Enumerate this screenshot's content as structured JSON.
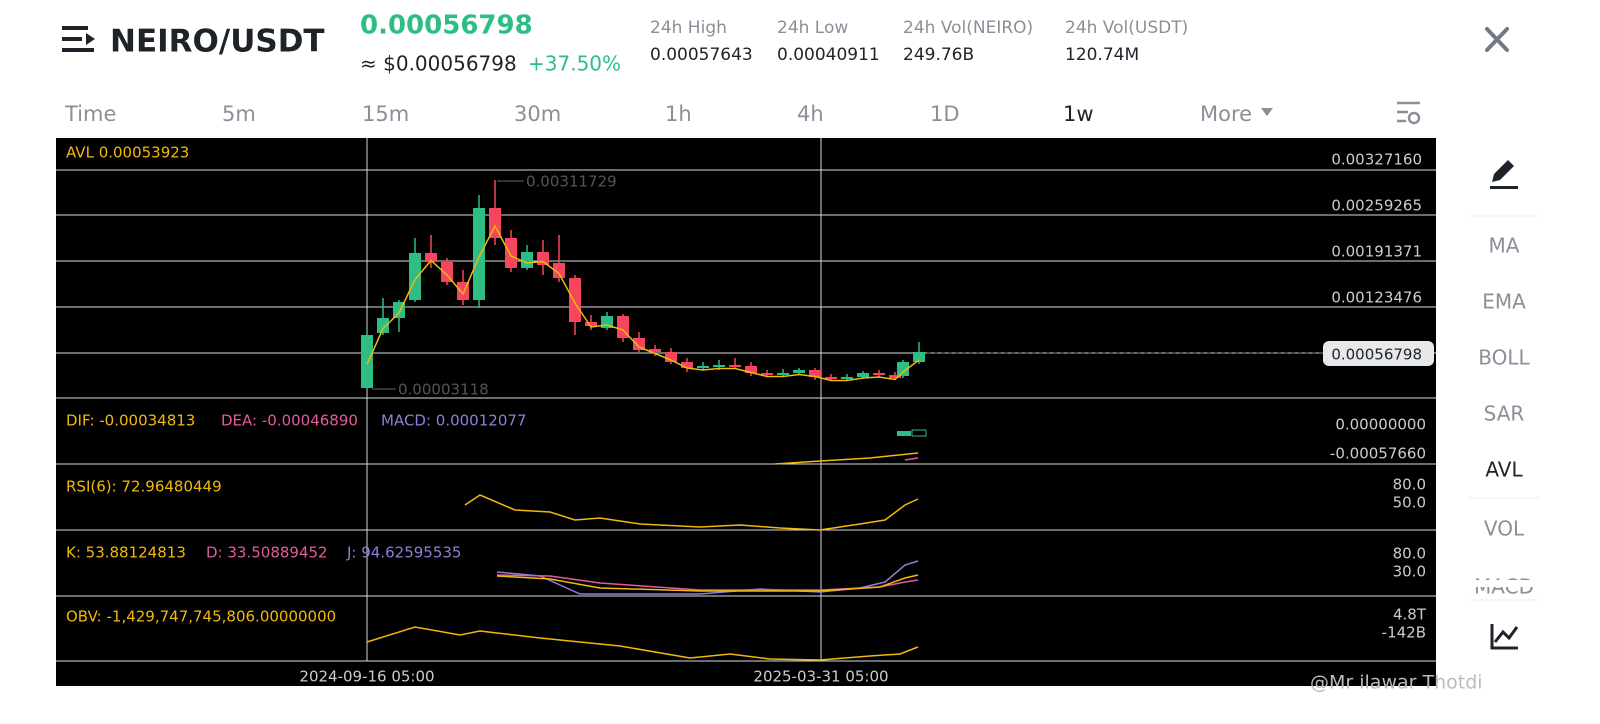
{
  "header": {
    "pair": "NEIRO/USDT",
    "price": "0.00056798",
    "usd_price": "≈ $0.00056798",
    "change": "+37.50%"
  },
  "stats": [
    {
      "label": "24h High",
      "value": "0.00057643"
    },
    {
      "label": "24h Low",
      "value": "0.00040911"
    },
    {
      "label": "24h Vol(NEIRO)",
      "value": "249.76B"
    },
    {
      "label": "24h Vol(USDT)",
      "value": "120.74M"
    }
  ],
  "tabs": [
    "Time",
    "5m",
    "15m",
    "30m",
    "1h",
    "4h",
    "1D",
    "1w",
    "More"
  ],
  "sidebar": [
    "MA",
    "EMA",
    "BOLL",
    "SAR",
    "AVL",
    "VOL",
    "MACD"
  ],
  "chart": {
    "avl": "AVL 0.00053923",
    "price_axis": [
      "0.00327160",
      "0.00259265",
      "0.00191371",
      "0.00123476"
    ],
    "current_price": "0.00056798",
    "high_label": "0.00311729",
    "low_label": "0.00003118",
    "macd": {
      "dif": "DIF: -0.00034813",
      "dea": "DEA: -0.00046890",
      "macd": "MACD: 0.00012077",
      "axis": [
        "0.00000000",
        "-0.00057660"
      ]
    },
    "rsi": {
      "label": "RSI(6): 72.96480449",
      "axis": [
        "80.0",
        "50.0"
      ]
    },
    "kdj": {
      "k": "K: 53.88124813",
      "d": "D: 33.50889452",
      "j": "J: 94.62595535",
      "axis": [
        "80.0",
        "30.0"
      ]
    },
    "obv": {
      "label": "OBV: -1,429,747,745,806.00000000",
      "axis": [
        "4.8T",
        "-142B"
      ]
    },
    "dates": [
      "2024-09-16 05:00",
      "2025-03-31 05:00"
    ]
  },
  "watermark": "@Mr   ilawar Thotdi"
}
